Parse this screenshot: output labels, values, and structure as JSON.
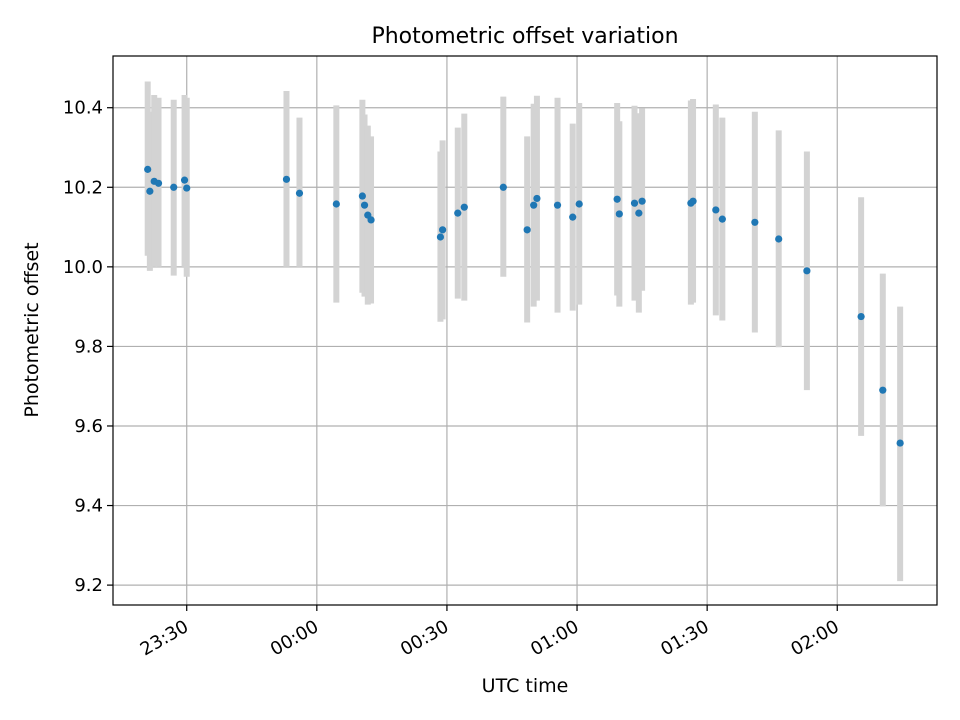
{
  "chart_data": {
    "type": "scatter",
    "title": "Photometric offset variation",
    "xlabel": "UTC time",
    "ylabel": "Photometric offset",
    "x_unit": "UTC time (HH:MM)",
    "xlim": [
      "23:13",
      "02:23"
    ],
    "ylim": [
      9.15,
      10.53
    ],
    "x_ticks": [
      "23:30",
      "00:00",
      "00:30",
      "01:00",
      "01:30",
      "02:00"
    ],
    "y_ticks": [
      "9.2",
      "9.4",
      "9.6",
      "9.8",
      "10.0",
      "10.2",
      "10.4"
    ],
    "grid": true,
    "x_tick_rotation": "rotated ~30°",
    "colors": {
      "point": "#1f77b4",
      "errorbar": "#d3d3d3",
      "grid": "#b0b0b0"
    },
    "series": [
      {
        "points": [
          {
            "x": "23:21:00",
            "y": 10.245,
            "ylow": 10.028,
            "yhigh": 10.466
          },
          {
            "x": "23:21:30",
            "y": 10.19,
            "ylow": 9.99,
            "yhigh": 10.39
          },
          {
            "x": "23:22:30",
            "y": 10.215,
            "ylow": 10.0,
            "yhigh": 10.432
          },
          {
            "x": "23:23:30",
            "y": 10.21,
            "ylow": 10.0,
            "yhigh": 10.425
          },
          {
            "x": "23:27:00",
            "y": 10.2,
            "ylow": 9.978,
            "yhigh": 10.42
          },
          {
            "x": "23:29:30",
            "y": 10.218,
            "ylow": 10.0,
            "yhigh": 10.432
          },
          {
            "x": "23:30:00",
            "y": 10.198,
            "ylow": 9.975,
            "yhigh": 10.425
          },
          {
            "x": "23:53:00",
            "y": 10.22,
            "ylow": 10.0,
            "yhigh": 10.442
          },
          {
            "x": "23:56:00",
            "y": 10.185,
            "ylow": 10.0,
            "yhigh": 10.375
          },
          {
            "x": "00:04:30",
            "y": 10.158,
            "ylow": 9.91,
            "yhigh": 10.406
          },
          {
            "x": "00:10:30",
            "y": 10.178,
            "ylow": 9.935,
            "yhigh": 10.42
          },
          {
            "x": "00:11:00",
            "y": 10.155,
            "ylow": 9.925,
            "yhigh": 10.383
          },
          {
            "x": "00:11:45",
            "y": 10.13,
            "ylow": 9.905,
            "yhigh": 10.355
          },
          {
            "x": "00:12:30",
            "y": 10.118,
            "ylow": 9.908,
            "yhigh": 10.328
          },
          {
            "x": "00:28:30",
            "y": 10.075,
            "ylow": 9.862,
            "yhigh": 10.29
          },
          {
            "x": "00:29:00",
            "y": 10.093,
            "ylow": 9.868,
            "yhigh": 10.318
          },
          {
            "x": "00:32:30",
            "y": 10.135,
            "ylow": 9.92,
            "yhigh": 10.35
          },
          {
            "x": "00:34:00",
            "y": 10.15,
            "ylow": 9.915,
            "yhigh": 10.385
          },
          {
            "x": "00:43:00",
            "y": 10.2,
            "ylow": 9.975,
            "yhigh": 10.428
          },
          {
            "x": "00:48:30",
            "y": 10.093,
            "ylow": 9.86,
            "yhigh": 10.328
          },
          {
            "x": "00:50:00",
            "y": 10.155,
            "ylow": 9.9,
            "yhigh": 10.41
          },
          {
            "x": "00:50:45",
            "y": 10.172,
            "ylow": 9.915,
            "yhigh": 10.43
          },
          {
            "x": "00:55:30",
            "y": 10.155,
            "ylow": 9.885,
            "yhigh": 10.425
          },
          {
            "x": "00:59:00",
            "y": 10.125,
            "ylow": 9.89,
            "yhigh": 10.36
          },
          {
            "x": "01:00:30",
            "y": 10.158,
            "ylow": 9.905,
            "yhigh": 10.412
          },
          {
            "x": "01:09:15",
            "y": 10.17,
            "ylow": 9.928,
            "yhigh": 10.412
          },
          {
            "x": "01:09:45",
            "y": 10.133,
            "ylow": 9.9,
            "yhigh": 10.366
          },
          {
            "x": "01:13:15",
            "y": 10.16,
            "ylow": 9.915,
            "yhigh": 10.405
          },
          {
            "x": "01:14:15",
            "y": 10.135,
            "ylow": 9.885,
            "yhigh": 10.386
          },
          {
            "x": "01:15:00",
            "y": 10.165,
            "ylow": 9.94,
            "yhigh": 10.398
          },
          {
            "x": "01:26:15",
            "y": 10.16,
            "ylow": 9.905,
            "yhigh": 10.418
          },
          {
            "x": "01:26:45",
            "y": 10.165,
            "ylow": 9.91,
            "yhigh": 10.422
          },
          {
            "x": "01:32:00",
            "y": 10.143,
            "ylow": 9.878,
            "yhigh": 10.408
          },
          {
            "x": "01:33:30",
            "y": 10.12,
            "ylow": 9.865,
            "yhigh": 10.375
          },
          {
            "x": "01:41:00",
            "y": 10.112,
            "ylow": 9.835,
            "yhigh": 10.39
          },
          {
            "x": "01:46:30",
            "y": 10.07,
            "ylow": 9.798,
            "yhigh": 10.343
          },
          {
            "x": "01:53:00",
            "y": 9.99,
            "ylow": 9.69,
            "yhigh": 10.29
          },
          {
            "x": "02:05:30",
            "y": 9.875,
            "ylow": 9.575,
            "yhigh": 10.175
          },
          {
            "x": "02:10:30",
            "y": 9.69,
            "ylow": 9.398,
            "yhigh": 9.983
          },
          {
            "x": "02:14:30",
            "y": 9.557,
            "ylow": 9.21,
            "yhigh": 9.9
          }
        ]
      }
    ]
  }
}
